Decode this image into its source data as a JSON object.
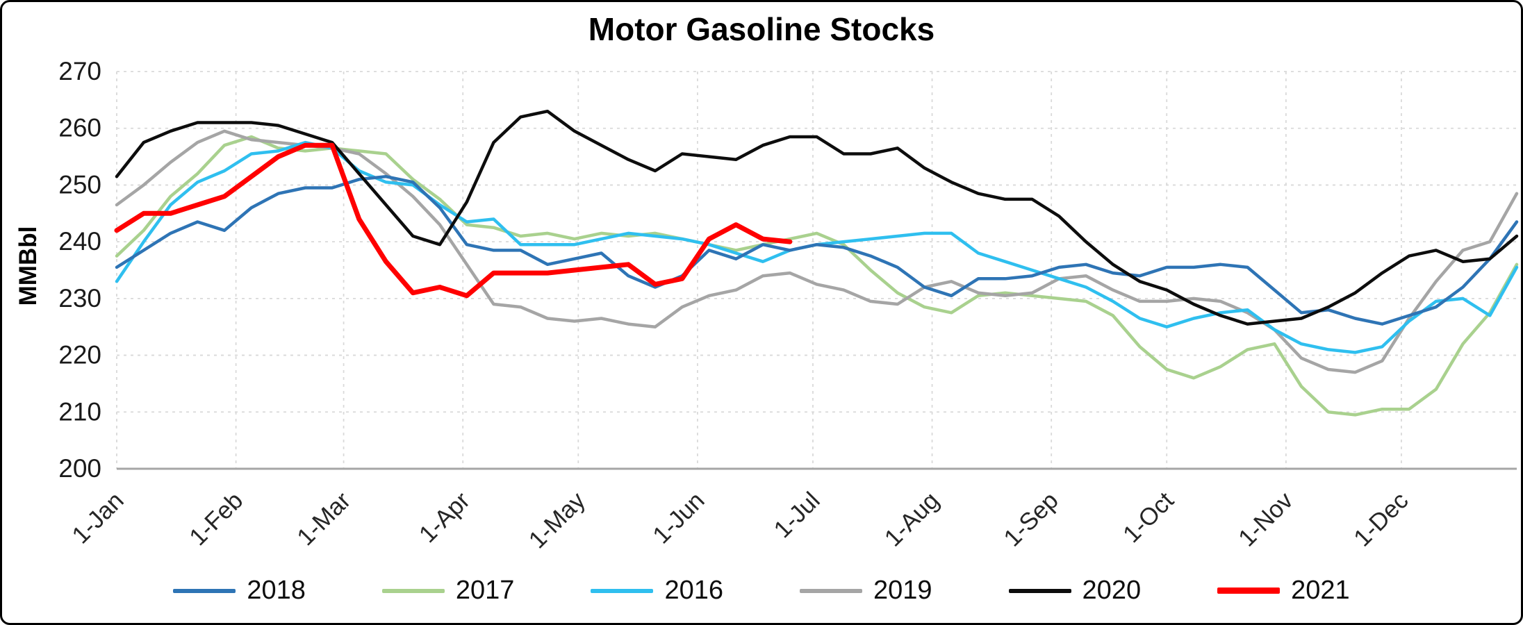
{
  "chart_data": {
    "type": "line",
    "title": "Motor Gasoline Stocks",
    "ylabel": "MMBbl",
    "ylim": [
      200,
      270
    ],
    "yticks": [
      200,
      210,
      220,
      230,
      240,
      250,
      260,
      270
    ],
    "grid": "dashed",
    "legend_position": "bottom",
    "x_unit": "weekly-points, day index = week * 7",
    "x_range_days": [
      0,
      364
    ],
    "xtick_labels": [
      "1-Jan",
      "1-Feb",
      "1-Mar",
      "1-Apr",
      "1-May",
      "1-Jun",
      "1-Jul",
      "1-Aug",
      "1-Sep",
      "1-Oct",
      "1-Nov",
      "1-Dec"
    ],
    "xtick_days": [
      0,
      31,
      59,
      90,
      120,
      151,
      181,
      212,
      243,
      273,
      304,
      334
    ],
    "draw_order": [
      1,
      3,
      2,
      0,
      4,
      5
    ],
    "series": [
      {
        "name": "2018",
        "color": "#2E74B5",
        "width": 4.5,
        "values": [
          235.5,
          238.5,
          241.5,
          243.5,
          242,
          246,
          248.5,
          249.5,
          249.5,
          251,
          251.5,
          250.5,
          246,
          239.5,
          238.5,
          238.5,
          236,
          237,
          238,
          234,
          232,
          234,
          238.5,
          237,
          239.5,
          238.5,
          239.5,
          239,
          237.5,
          235.5,
          232,
          230.5,
          233.5,
          233.5,
          234,
          235.5,
          236,
          234.5,
          234,
          235.5,
          235.5,
          236,
          235.5,
          231.5,
          227.5,
          228,
          226.5,
          225.5,
          227,
          228.5,
          232,
          237,
          243.5
        ]
      },
      {
        "name": "2017",
        "color": "#A9D18E",
        "width": 4.5,
        "values": [
          237.5,
          242,
          248,
          252,
          257,
          258.5,
          256.5,
          256,
          256.5,
          256,
          255.5,
          251,
          247.5,
          243,
          242.5,
          241,
          241.5,
          240.5,
          241.5,
          241,
          241.5,
          240.5,
          239.5,
          238.5,
          239.5,
          240.5,
          241.5,
          239.5,
          235,
          231,
          228.5,
          227.5,
          230.5,
          231,
          230.5,
          230,
          229.5,
          227,
          221.5,
          217.5,
          216,
          218,
          221,
          222,
          214.5,
          210,
          209.5,
          210.5,
          210.5,
          214,
          222,
          227.5,
          236
        ]
      },
      {
        "name": "2016",
        "color": "#2FBFEF",
        "width": 4.5,
        "values": [
          233,
          240,
          246.5,
          250.5,
          252.5,
          255.5,
          256,
          257.5,
          256.5,
          252.5,
          250.5,
          250,
          246.5,
          243.5,
          244,
          239.5,
          239.5,
          239.5,
          240.5,
          241.5,
          241,
          240.5,
          239.5,
          238,
          236.5,
          238.5,
          239.5,
          240,
          240.5,
          241,
          241.5,
          241.5,
          238,
          236.5,
          235,
          233.5,
          232,
          229.5,
          226.5,
          225,
          226.5,
          227.5,
          228,
          224.5,
          222,
          221,
          220.5,
          221.5,
          226,
          229.5,
          230,
          227,
          235.5
        ]
      },
      {
        "name": "2019",
        "color": "#A5A5A5",
        "width": 4.5,
        "values": [
          246.5,
          250,
          254,
          257.5,
          259.5,
          258,
          257.5,
          257,
          256.5,
          255.5,
          252,
          248,
          243,
          236,
          229,
          228.5,
          226.5,
          226,
          226.5,
          225.5,
          225,
          228.5,
          230.5,
          231.5,
          234,
          234.5,
          232.5,
          231.5,
          229.5,
          229,
          232,
          233,
          231,
          230.5,
          231,
          233.5,
          234,
          231.5,
          229.5,
          229.5,
          230,
          229.5,
          227.5,
          224.5,
          219.5,
          217.5,
          217,
          219,
          226.5,
          233,
          238.5,
          240,
          248.5
        ]
      },
      {
        "name": "2020",
        "color": "#0D0D0D",
        "width": 4.5,
        "values": [
          251.5,
          257.5,
          259.5,
          261,
          261,
          261,
          260.5,
          259,
          257.5,
          252,
          246.5,
          241,
          239.5,
          247,
          257.5,
          262,
          263,
          259.5,
          257,
          254.5,
          252.5,
          255.5,
          255,
          254.5,
          257,
          258.5,
          258.5,
          255.5,
          255.5,
          256.5,
          253,
          250.5,
          248.5,
          247.5,
          247.5,
          244.5,
          240,
          236,
          233,
          231.5,
          229,
          227,
          225.5,
          226,
          226.5,
          228.5,
          231,
          234.5,
          237.5,
          238.5,
          236.5,
          237,
          241
        ]
      },
      {
        "name": "2021",
        "color": "#FF0000",
        "width": 7,
        "values": [
          242,
          245,
          245,
          246.5,
          248,
          251.5,
          255,
          257,
          257,
          244,
          236.5,
          231,
          232,
          230.5,
          234.5,
          234.5,
          234.5,
          235,
          235.5,
          236,
          232.5,
          233.5,
          240.5,
          243,
          240.5,
          240,
          null,
          null,
          null,
          null,
          null,
          null,
          null,
          null,
          null,
          null,
          null,
          null,
          null,
          null,
          null,
          null,
          null,
          null,
          null,
          null,
          null,
          null,
          null,
          null,
          null,
          null,
          null
        ]
      }
    ]
  }
}
